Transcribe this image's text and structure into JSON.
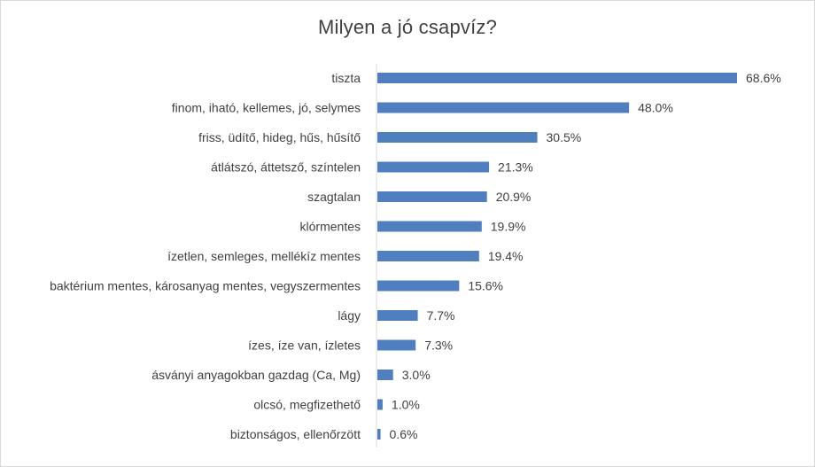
{
  "chart_data": {
    "type": "bar",
    "orientation": "horizontal",
    "title": "Milyen a jó csapvíz?",
    "categories": [
      "tiszta",
      "finom, iható, kellemes, jó, selymes",
      "friss, üdítő, hideg, hűs, hűsítő",
      "átlátszó, áttetsző, színtelen",
      "szagtalan",
      "klórmentes",
      "ízetlen, semleges, mellékíz mentes",
      "baktérium mentes, károsanyag mentes, vegyszermentes",
      "lágy",
      "ízes, íze van, ízletes",
      "ásványi anyagokban gazdag (Ca, Mg)",
      "olcsó, megfizethető",
      "biztonságos, ellenőrzött"
    ],
    "values": [
      68.6,
      48.0,
      30.5,
      21.3,
      20.9,
      19.9,
      19.4,
      15.6,
      7.7,
      7.3,
      3.0,
      1.0,
      0.6
    ],
    "value_labels": [
      "68.6%",
      "48.0%",
      "30.5%",
      "21.3%",
      "20.9%",
      "19.9%",
      "19.4%",
      "15.6%",
      "7.7%",
      "7.3%",
      "3.0%",
      "1.0%",
      "0.6%"
    ],
    "xlim": [
      0,
      68.6
    ],
    "grid": false,
    "legend": "none",
    "bar_color": "#4f7fbf",
    "axis_color": "#d9d9d9",
    "text_color": "#404040"
  }
}
